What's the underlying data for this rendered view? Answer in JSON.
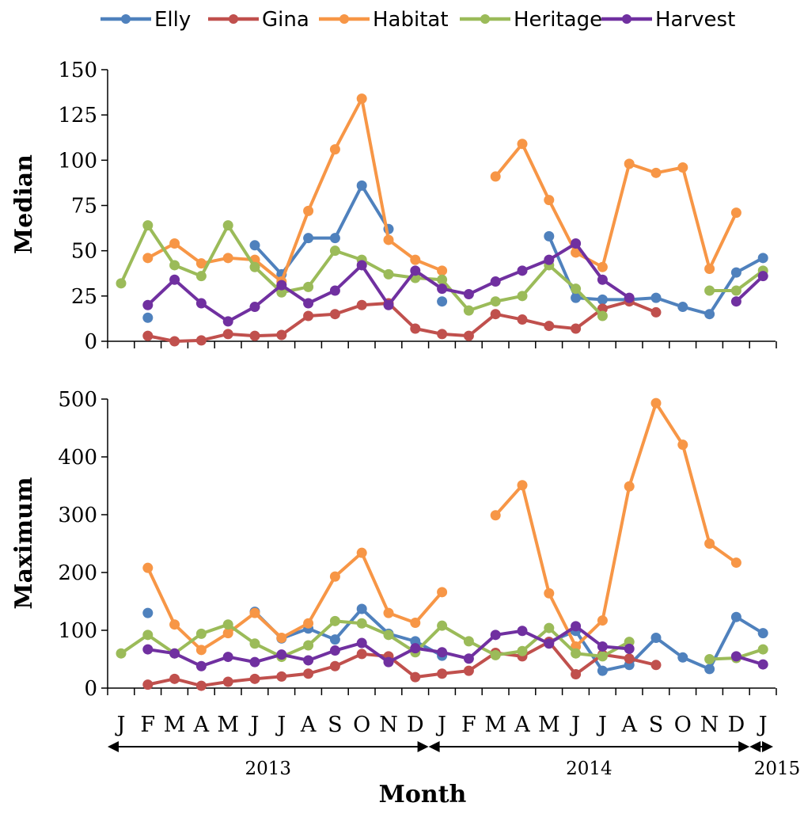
{
  "chart_data": [
    {
      "type": "line",
      "ylabel": "Median",
      "xlabel": "",
      "ylim": [
        0,
        150
      ],
      "yticks": [
        "0",
        "25",
        "50",
        "75",
        "100",
        "125",
        "150"
      ],
      "x": [
        "J",
        "F",
        "M",
        "A",
        "M",
        "J",
        "J",
        "A",
        "S",
        "O",
        "N",
        "D",
        "J",
        "F",
        "M",
        "A",
        "M",
        "J",
        "J",
        "A",
        "S",
        "O",
        "N",
        "D",
        "J"
      ],
      "series": [
        {
          "name": "Elly",
          "color": "#4f81bd",
          "values": [
            null,
            13,
            null,
            null,
            null,
            53,
            37,
            57,
            57,
            86,
            62,
            null,
            22,
            null,
            null,
            null,
            58,
            24,
            23,
            23,
            24,
            19,
            15,
            38,
            46
          ]
        },
        {
          "name": "Gina",
          "color": "#c0504d",
          "values": [
            null,
            3,
            0,
            0.5,
            4,
            3,
            3.5,
            14,
            15,
            20,
            21,
            7,
            4,
            3,
            15,
            12,
            8.5,
            7,
            18,
            22,
            16,
            null,
            null,
            null,
            null
          ]
        },
        {
          "name": "Habitat",
          "color": "#f79646",
          "values": [
            null,
            46,
            54,
            43,
            46,
            45,
            33,
            72,
            106,
            134,
            56,
            45,
            39,
            null,
            91,
            109,
            78,
            49,
            41,
            98,
            93,
            96,
            40,
            71,
            null
          ]
        },
        {
          "name": "Heritage",
          "color": "#9bbb59",
          "values": [
            32,
            64,
            42,
            36,
            64,
            41,
            27,
            30,
            50,
            45,
            37,
            35,
            34,
            17,
            22,
            25,
            42,
            29,
            14,
            null,
            null,
            null,
            28,
            28,
            39
          ]
        },
        {
          "name": "Harvest",
          "color": "#7030a0",
          "values": [
            null,
            20,
            34,
            21,
            11,
            19,
            31,
            21,
            28,
            42,
            20,
            39,
            29,
            26,
            33,
            39,
            45,
            54,
            34,
            24,
            null,
            null,
            null,
            22,
            36
          ]
        }
      ]
    },
    {
      "type": "line",
      "ylabel": "Maximum",
      "xlabel": "Month",
      "ylim": [
        0,
        500
      ],
      "yticks": [
        "0",
        "100",
        "200",
        "300",
        "400",
        "500"
      ],
      "x": [
        "J",
        "F",
        "M",
        "A",
        "M",
        "J",
        "J",
        "A",
        "S",
        "O",
        "N",
        "D",
        "J",
        "F",
        "M",
        "A",
        "M",
        "J",
        "J",
        "A",
        "S",
        "O",
        "N",
        "D",
        "J"
      ],
      "series": [
        {
          "name": "Elly",
          "color": "#4f81bd",
          "values": [
            null,
            130,
            null,
            null,
            null,
            132,
            86,
            103,
            84,
            137,
            94,
            81,
            56,
            null,
            null,
            null,
            80,
            99,
            30,
            40,
            87,
            53,
            33,
            123,
            95
          ]
        },
        {
          "name": "Gina",
          "color": "#c0504d",
          "values": [
            null,
            6,
            16,
            4,
            11,
            16,
            20,
            25,
            38,
            59,
            55,
            19,
            25,
            30,
            61,
            55,
            80,
            24,
            58,
            51,
            40,
            null,
            null,
            null,
            null
          ]
        },
        {
          "name": "Habitat",
          "color": "#f79646",
          "values": [
            null,
            208,
            110,
            66,
            95,
            130,
            87,
            112,
            193,
            234,
            130,
            113,
            166,
            null,
            299,
            351,
            164,
            72,
            117,
            349,
            493,
            421,
            250,
            217,
            null
          ]
        },
        {
          "name": "Heritage",
          "color": "#9bbb59",
          "values": [
            60,
            92,
            60,
            94,
            110,
            77,
            54,
            74,
            116,
            112,
            92,
            62,
            108,
            81,
            57,
            64,
            104,
            60,
            55,
            80,
            null,
            null,
            50,
            52,
            67
          ]
        },
        {
          "name": "Harvest",
          "color": "#7030a0",
          "values": [
            null,
            67,
            60,
            38,
            54,
            45,
            58,
            48,
            65,
            78,
            45,
            69,
            62,
            51,
            92,
            99,
            77,
            107,
            72,
            68,
            null,
            null,
            null,
            55,
            41
          ]
        }
      ]
    }
  ],
  "legend": [
    {
      "name": "Elly",
      "color": "#4f81bd"
    },
    {
      "name": "Gina",
      "color": "#c0504d"
    },
    {
      "name": "Habitat",
      "color": "#f79646"
    },
    {
      "name": "Heritage",
      "color": "#9bbb59"
    },
    {
      "name": "Harvest",
      "color": "#7030a0"
    }
  ],
  "months": [
    "J",
    "F",
    "M",
    "A",
    "M",
    "J",
    "J",
    "A",
    "S",
    "O",
    "N",
    "D",
    "J",
    "F",
    "M",
    "A",
    "M",
    "J",
    "J",
    "A",
    "S",
    "O",
    "N",
    "D",
    "J"
  ],
  "years": [
    {
      "label": "2013",
      "from": 0,
      "to": 12
    },
    {
      "label": "2014",
      "from": 12,
      "to": 24
    },
    {
      "label": "2015",
      "from": 24,
      "to": 25
    }
  ],
  "x_axis_title": "Month",
  "y_axis_titles": {
    "median": "Median",
    "maximum": "Maximum"
  }
}
